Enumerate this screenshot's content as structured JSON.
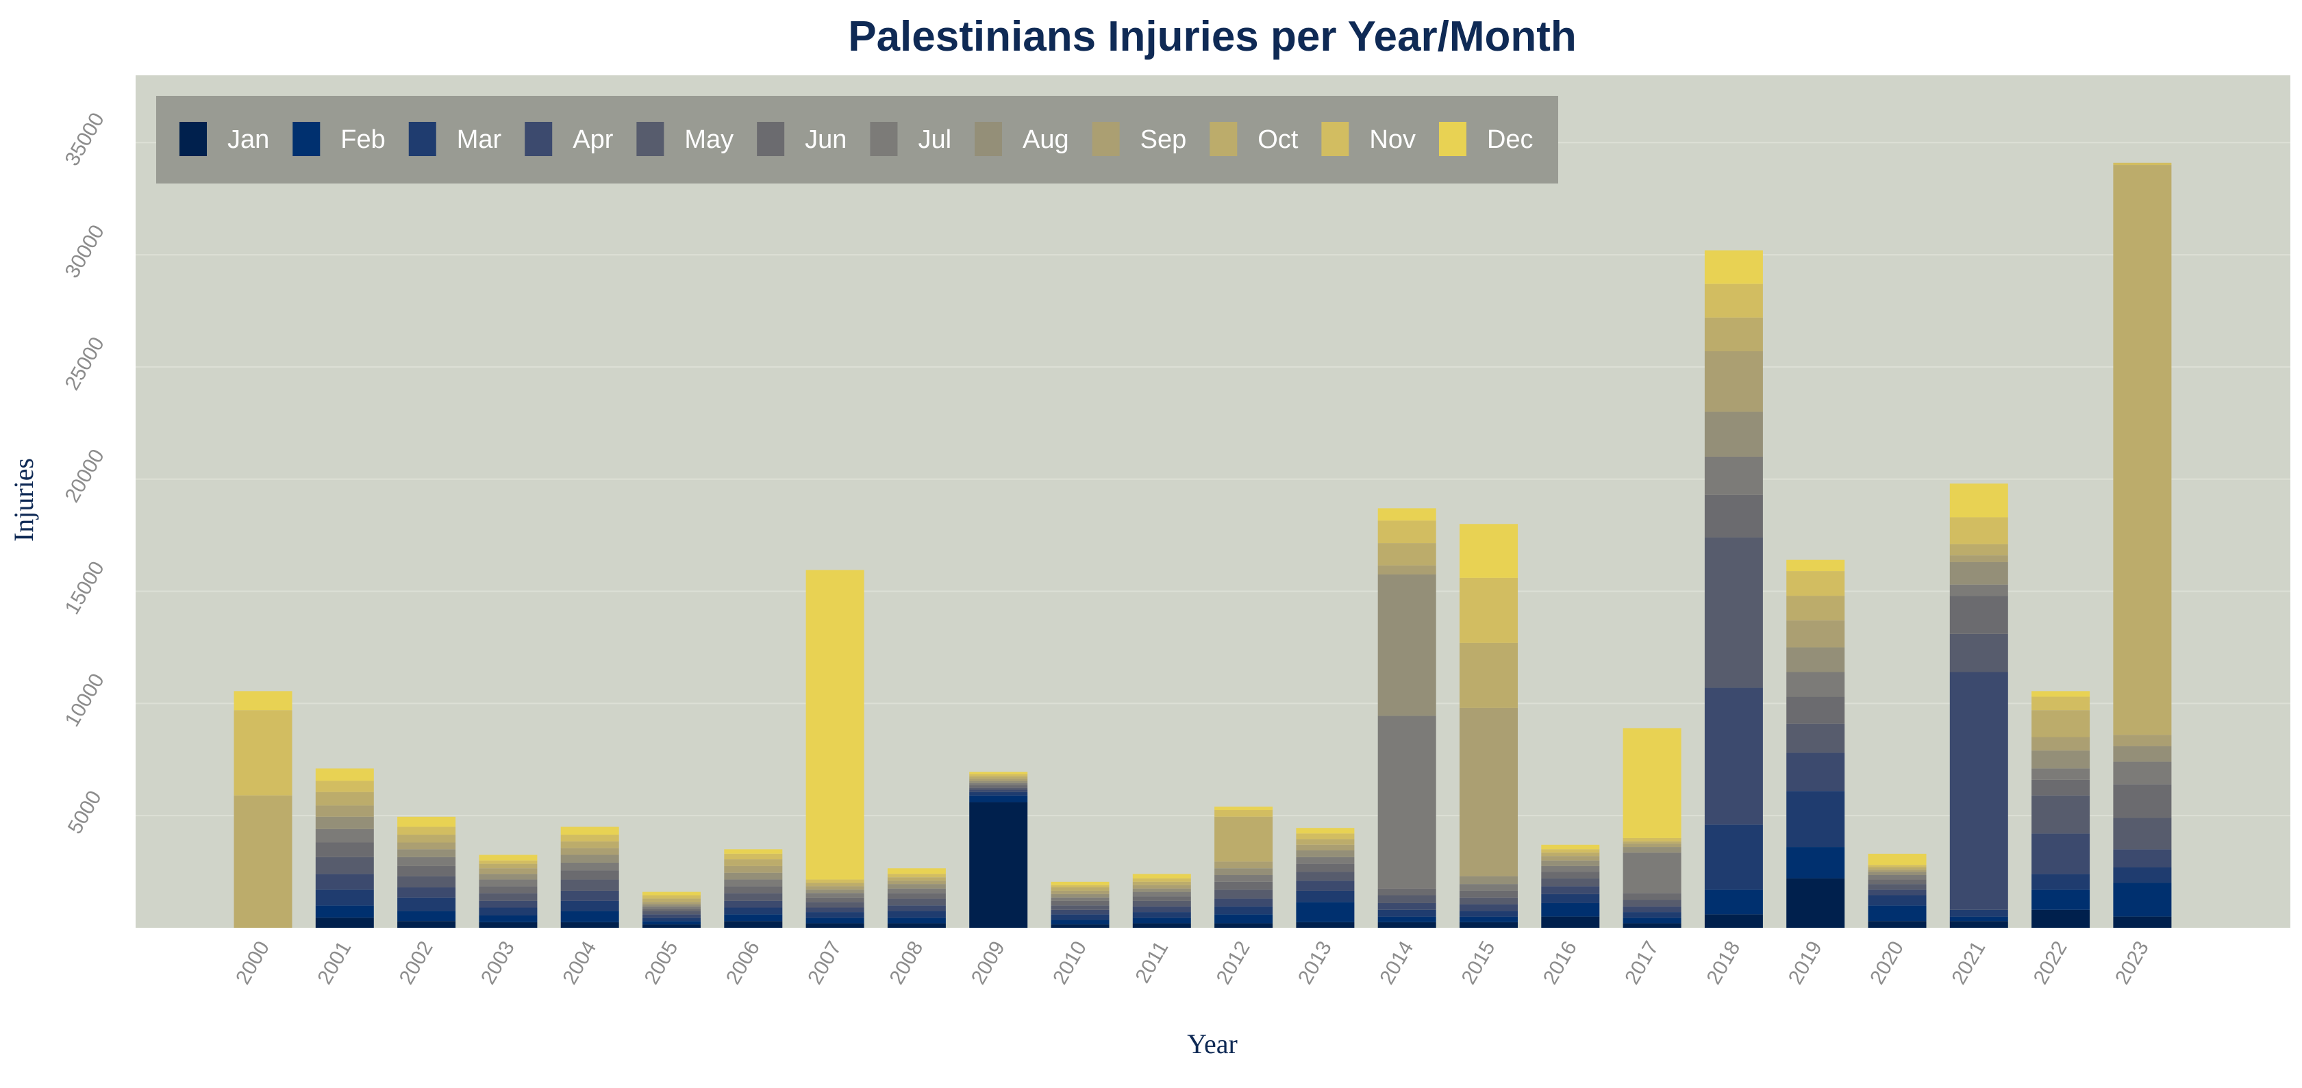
{
  "chart_data": {
    "type": "bar",
    "stacked": true,
    "title": "Palestinians Injuries per Year/Month",
    "xlabel": "Year",
    "ylabel": "Injuries",
    "ylim": [
      0,
      38000
    ],
    "yticks": [
      5000,
      10000,
      15000,
      20000,
      25000,
      30000,
      35000
    ],
    "grid": true,
    "legend_position": "top-left",
    "categories": [
      "2000",
      "2001",
      "2002",
      "2003",
      "2004",
      "2005",
      "2006",
      "2007",
      "2008",
      "2009",
      "2010",
      "2011",
      "2012",
      "2013",
      "2014",
      "2015",
      "2016",
      "2017",
      "2018",
      "2019",
      "2020",
      "2021",
      "2022",
      "2023"
    ],
    "series": [
      {
        "name": "Jan",
        "color": "#00204d",
        "values": [
          0,
          450,
          300,
          250,
          250,
          150,
          300,
          200,
          200,
          5600,
          150,
          200,
          200,
          250,
          250,
          250,
          500,
          200,
          600,
          2200,
          300,
          300,
          800,
          500
        ]
      },
      {
        "name": "Feb",
        "color": "#00306f",
        "values": [
          0,
          550,
          450,
          300,
          500,
          150,
          300,
          250,
          250,
          300,
          200,
          250,
          400,
          900,
          250,
          250,
          600,
          250,
          1100,
          1400,
          700,
          200,
          900,
          1500
        ]
      },
      {
        "name": "Mar",
        "color": "#1f3c6f",
        "values": [
          0,
          700,
          600,
          350,
          450,
          150,
          300,
          250,
          300,
          150,
          250,
          250,
          350,
          500,
          300,
          250,
          400,
          250,
          2900,
          2500,
          450,
          300,
          700,
          700
        ]
      },
      {
        "name": "Apr",
        "color": "#3c4a6e",
        "values": [
          0,
          700,
          450,
          300,
          450,
          150,
          300,
          200,
          250,
          100,
          200,
          250,
          350,
          450,
          300,
          300,
          350,
          250,
          6100,
          1700,
          250,
          10600,
          1800,
          800
        ]
      },
      {
        "name": "May",
        "color": "#575c6d",
        "values": [
          0,
          750,
          500,
          350,
          500,
          150,
          350,
          250,
          300,
          100,
          200,
          250,
          400,
          400,
          350,
          300,
          350,
          300,
          6700,
          1300,
          250,
          1700,
          1700,
          1400
        ]
      },
      {
        "name": "Jun",
        "color": "#6b6b6f",
        "values": [
          0,
          650,
          450,
          300,
          400,
          100,
          300,
          200,
          250,
          100,
          200,
          200,
          350,
          350,
          300,
          300,
          300,
          300,
          1900,
          1200,
          200,
          1700,
          700,
          1500
        ]
      },
      {
        "name": "Jul",
        "color": "#7c7b78",
        "values": [
          0,
          600,
          400,
          300,
          350,
          100,
          300,
          200,
          200,
          100,
          150,
          200,
          300,
          300,
          7700,
          300,
          250,
          1800,
          1700,
          1100,
          200,
          500,
          500,
          1000
        ]
      },
      {
        "name": "Aug",
        "color": "#948f78",
        "values": [
          0,
          550,
          350,
          250,
          350,
          100,
          300,
          150,
          200,
          100,
          150,
          150,
          300,
          300,
          6300,
          350,
          250,
          250,
          2000,
          1100,
          150,
          1000,
          800,
          700
        ]
      },
      {
        "name": "Sep",
        "color": "#ab9f72",
        "values": [
          0,
          500,
          300,
          250,
          300,
          100,
          300,
          150,
          150,
          100,
          150,
          150,
          300,
          250,
          400,
          7500,
          200,
          150,
          2700,
          1200,
          100,
          300,
          600,
          500
        ]
      },
      {
        "name": "Oct",
        "color": "#bcac6b",
        "values": [
          5900,
          600,
          350,
          200,
          300,
          150,
          300,
          150,
          150,
          100,
          150,
          150,
          2000,
          250,
          1000,
          2900,
          150,
          100,
          1500,
          1100,
          100,
          500,
          1200,
          25400
        ]
      },
      {
        "name": "Nov",
        "color": "#d2bd61",
        "values": [
          3800,
          500,
          350,
          150,
          300,
          150,
          250,
          150,
          150,
          100,
          100,
          150,
          300,
          250,
          1000,
          2900,
          150,
          150,
          1500,
          1100,
          100,
          1200,
          600,
          100
        ]
      },
      {
        "name": "Dec",
        "color": "#e8d253",
        "values": [
          850,
          550,
          450,
          250,
          350,
          150,
          200,
          13800,
          250,
          100,
          150,
          200,
          150,
          250,
          550,
          2400,
          200,
          4900,
          1500,
          500,
          500,
          1500,
          250,
          0
        ]
      }
    ]
  }
}
